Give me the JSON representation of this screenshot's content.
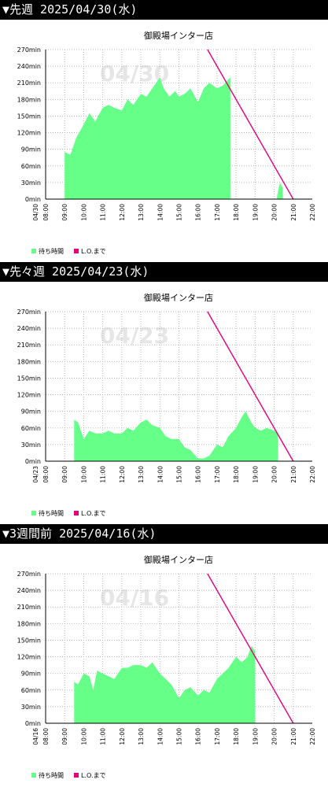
{
  "sections": [
    {
      "header": "▼先週 2025/04/30(水)",
      "chart_title": "御殿場インター店",
      "watermark": "04/30",
      "date_label": "04/30",
      "legend": [
        {
          "label": "待ち時間",
          "color": "#66ff88"
        },
        {
          "label": "L.O.まで",
          "color": "#e6007e"
        }
      ]
    },
    {
      "header": "▼先々週 2025/04/23(水)",
      "chart_title": "御殿場インター店",
      "watermark": "04/23",
      "date_label": "04/23",
      "legend": [
        {
          "label": "待ち時間",
          "color": "#66ff88"
        },
        {
          "label": "L.O.まで",
          "color": "#e6007e"
        }
      ]
    },
    {
      "header": "▼3週間前 2025/04/16(水)",
      "chart_title": "御殿場インター店",
      "watermark": "04/16",
      "date_label": "04/16",
      "legend": [
        {
          "label": "待ち時間",
          "color": "#66ff88"
        },
        {
          "label": "L.O.まで",
          "color": "#e6007e"
        }
      ]
    }
  ],
  "chart_data": [
    {
      "type": "area",
      "title": "御殿場インター店",
      "x_unit": "hour",
      "xlim": [
        8,
        22
      ],
      "ylim": [
        0,
        270
      ],
      "y_ticks": [
        "0min",
        "30min",
        "60min",
        "90min",
        "120min",
        "150min",
        "180min",
        "210min",
        "240min",
        "270min"
      ],
      "x_ticks": [
        "08:00",
        "09:00",
        "10:00",
        "11:00",
        "12:00",
        "13:00",
        "14:00",
        "15:00",
        "16:00",
        "17:00",
        "18:00",
        "19:00",
        "20:00",
        "21:00",
        "22:00"
      ],
      "grid": true,
      "legend_position": "bottom-left",
      "series": [
        {
          "name": "待ち時間",
          "color": "#66ff88",
          "x": [
            9.0,
            9.3,
            9.6,
            10.0,
            10.3,
            10.6,
            11.0,
            11.3,
            11.6,
            12.0,
            12.3,
            12.6,
            13.0,
            13.3,
            13.6,
            14.0,
            14.2,
            14.5,
            14.8,
            15.0,
            15.3,
            15.6,
            16.0,
            16.3,
            16.6,
            17.0,
            17.3,
            17.7
          ],
          "y": [
            85,
            80,
            110,
            135,
            155,
            140,
            165,
            170,
            165,
            160,
            180,
            170,
            190,
            185,
            200,
            220,
            200,
            185,
            195,
            185,
            190,
            200,
            175,
            200,
            210,
            200,
            205,
            220
          ]
        },
        {
          "name": "待ち時間",
          "color": "#66ff88",
          "x": [
            20.15,
            20.3,
            20.45
          ],
          "y": [
            5,
            30,
            20
          ]
        },
        {
          "name": "L.O.まで",
          "color": "#e6007e",
          "x": [
            16.5,
            21.0
          ],
          "y": [
            270,
            0
          ]
        }
      ]
    },
    {
      "type": "area",
      "title": "御殿場インター店",
      "x_unit": "hour",
      "xlim": [
        8,
        22
      ],
      "ylim": [
        0,
        270
      ],
      "y_ticks": [
        "0min",
        "30min",
        "60min",
        "90min",
        "120min",
        "150min",
        "180min",
        "210min",
        "240min",
        "270min"
      ],
      "x_ticks": [
        "08:00",
        "09:00",
        "10:00",
        "11:00",
        "12:00",
        "13:00",
        "14:00",
        "15:00",
        "16:00",
        "17:00",
        "18:00",
        "19:00",
        "20:00",
        "21:00",
        "22:00"
      ],
      "grid": true,
      "legend_position": "bottom-left",
      "series": [
        {
          "name": "待ち時間",
          "color": "#66ff88",
          "x": [
            9.5,
            9.7,
            10.0,
            10.3,
            10.6,
            11.0,
            11.3,
            11.6,
            12.0,
            12.3,
            12.6,
            13.0,
            13.3,
            13.6,
            14.0,
            14.3,
            14.6,
            15.0,
            15.3,
            15.6,
            16.0,
            16.3,
            16.6,
            17.0,
            17.3,
            17.6,
            18.0,
            18.3,
            18.5,
            18.8,
            19.0,
            19.3,
            19.6,
            20.0,
            20.2
          ],
          "y": [
            75,
            70,
            40,
            55,
            50,
            50,
            55,
            50,
            50,
            60,
            55,
            70,
            75,
            65,
            60,
            45,
            40,
            40,
            25,
            20,
            5,
            5,
            10,
            30,
            25,
            45,
            60,
            80,
            90,
            70,
            60,
            55,
            60,
            55,
            50
          ]
        },
        {
          "name": "L.O.まで",
          "color": "#e6007e",
          "x": [
            16.5,
            21.0
          ],
          "y": [
            270,
            0
          ]
        }
      ]
    },
    {
      "type": "area",
      "title": "御殿場インター店",
      "x_unit": "hour",
      "xlim": [
        8,
        22
      ],
      "ylim": [
        0,
        270
      ],
      "y_ticks": [
        "0min",
        "30min",
        "60min",
        "90min",
        "120min",
        "150min",
        "180min",
        "210min",
        "240min",
        "270min"
      ],
      "x_ticks": [
        "08:00",
        "09:00",
        "10:00",
        "11:00",
        "12:00",
        "13:00",
        "14:00",
        "15:00",
        "16:00",
        "17:00",
        "18:00",
        "19:00",
        "20:00",
        "21:00",
        "22:00"
      ],
      "grid": true,
      "legend_position": "bottom-left",
      "series": [
        {
          "name": "待ち時間",
          "color": "#66ff88",
          "x": [
            9.5,
            9.7,
            10.0,
            10.3,
            10.5,
            10.7,
            11.0,
            11.3,
            11.6,
            12.0,
            12.3,
            12.6,
            13.0,
            13.3,
            13.6,
            14.0,
            14.3,
            14.6,
            15.0,
            15.3,
            15.6,
            16.0,
            16.3,
            16.6,
            17.0,
            17.3,
            17.6,
            18.0,
            18.3,
            18.6,
            18.8,
            19.0
          ],
          "y": [
            75,
            70,
            90,
            85,
            60,
            95,
            90,
            85,
            80,
            100,
            100,
            105,
            105,
            100,
            110,
            90,
            80,
            70,
            45,
            60,
            65,
            50,
            60,
            55,
            80,
            90,
            100,
            120,
            110,
            120,
            140,
            130
          ]
        },
        {
          "name": "L.O.まで",
          "color": "#e6007e",
          "x": [
            16.5,
            21.0
          ],
          "y": [
            270,
            0
          ]
        }
      ]
    }
  ]
}
